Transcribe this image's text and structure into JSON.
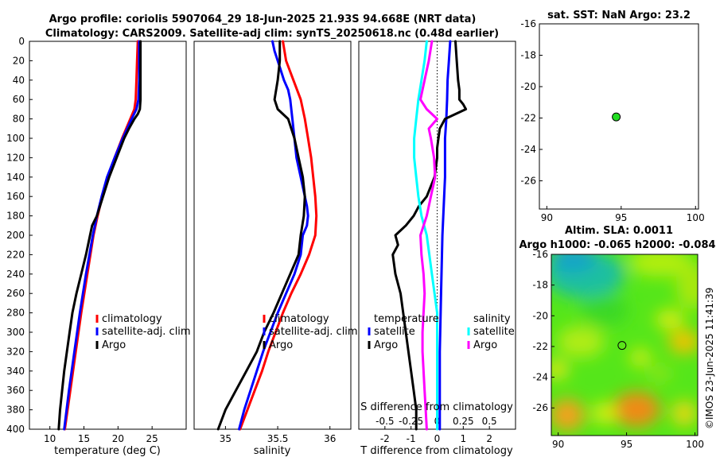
{
  "header": {
    "title_line1": "Argo profile: coriolis 5907064_29 18-Jun-2025 21.93S 94.668E (NRT data)",
    "title_line2": "Climatology: CARS2009. Satellite-adj clim: synTS_20250618.nc (0.48d earlier)"
  },
  "colors": {
    "climatology": "#ff0000",
    "satellite": "#0000ff",
    "argo": "#000000",
    "temp_diff_satellite": "#00ffff",
    "sal_diff_argo": "#ff00ff",
    "map_point": "#22dd22"
  },
  "legends": {
    "profile": [
      "climatology",
      "satellite-adj. clim",
      "Argo"
    ],
    "diff_temperature_title": "temperature",
    "diff_salinity_title": "salinity",
    "diff_entries": [
      "satellite",
      "Argo"
    ]
  },
  "sst_panel": {
    "title": "sat. SST: NaN Argo: 23.2"
  },
  "sla_panel": {
    "title_line1": "Altim. SLA: 0.0011",
    "title_line2": "Argo h1000: -0.065 h2000: -0.084"
  },
  "watermark": "©IMOS 23-Jun-2025 11:41:39",
  "chart_data": [
    {
      "type": "line",
      "name": "temperature-profile",
      "xlabel": "temperature (deg C)",
      "ylabel": "",
      "xlim": [
        7,
        30
      ],
      "ylim": [
        400,
        0
      ],
      "xticks": [
        "10",
        "15",
        "20",
        "25"
      ],
      "xtick_values": [
        10,
        15,
        20,
        25
      ],
      "yticks": [
        "0",
        "20",
        "40",
        "60",
        "80",
        "100",
        "120",
        "140",
        "160",
        "180",
        "200",
        "220",
        "240",
        "260",
        "280",
        "300",
        "320",
        "340",
        "360",
        "380",
        "400"
      ],
      "ytick_values": [
        0,
        20,
        40,
        60,
        80,
        100,
        120,
        140,
        160,
        180,
        200,
        220,
        240,
        260,
        280,
        300,
        320,
        340,
        360,
        380,
        400
      ],
      "series": [
        {
          "name": "climatology",
          "color": "#ff0000",
          "depth": [
            0,
            20,
            40,
            60,
            70,
            80,
            100,
            120,
            140,
            160,
            180,
            200,
            240,
            280,
            320,
            360,
            400
          ],
          "values": [
            22.9,
            22.8,
            22.7,
            22.6,
            22.4,
            21.8,
            20.6,
            19.5,
            18.5,
            17.7,
            17.0,
            16.4,
            15.5,
            14.6,
            13.8,
            13.0,
            12.2
          ]
        },
        {
          "name": "satellite-adj. clim",
          "color": "#0000ff",
          "depth": [
            0,
            20,
            40,
            60,
            70,
            80,
            100,
            120,
            140,
            160,
            180,
            200,
            240,
            280,
            320,
            360,
            400
          ],
          "values": [
            23.1,
            23.1,
            23.1,
            23.0,
            22.7,
            22.0,
            20.7,
            19.5,
            18.4,
            17.6,
            16.9,
            16.3,
            15.3,
            14.4,
            13.6,
            12.8,
            12.1
          ]
        },
        {
          "name": "Argo",
          "color": "#000000",
          "depth": [
            0,
            20,
            40,
            60,
            70,
            75,
            80,
            90,
            100,
            120,
            140,
            160,
            180,
            190,
            200,
            220,
            240,
            260,
            280,
            300,
            320,
            340,
            360,
            380,
            400
          ],
          "values": [
            23.3,
            23.3,
            23.3,
            23.3,
            23.2,
            22.9,
            22.4,
            21.6,
            20.9,
            19.8,
            18.7,
            17.8,
            16.9,
            16.2,
            15.9,
            15.3,
            14.6,
            13.9,
            13.3,
            12.9,
            12.5,
            12.1,
            11.8,
            11.5,
            11.3
          ]
        }
      ]
    },
    {
      "type": "line",
      "name": "salinity-profile",
      "xlabel": "salinity",
      "ylabel": "",
      "xlim": [
        34.7,
        36.2
      ],
      "ylim": [
        400,
        0
      ],
      "xticks": [
        "35",
        "35.5",
        "36"
      ],
      "xtick_values": [
        35,
        35.5,
        36
      ],
      "series": [
        {
          "name": "climatology",
          "color": "#ff0000",
          "depth": [
            0,
            20,
            40,
            60,
            80,
            100,
            120,
            140,
            160,
            180,
            200,
            220,
            240,
            260,
            280,
            300,
            320,
            340,
            360,
            380,
            400
          ],
          "values": [
            35.55,
            35.58,
            35.65,
            35.72,
            35.76,
            35.79,
            35.82,
            35.84,
            35.86,
            35.87,
            35.86,
            35.8,
            35.72,
            35.63,
            35.55,
            35.48,
            35.41,
            35.35,
            35.28,
            35.21,
            35.14
          ]
        },
        {
          "name": "satellite-adj. clim",
          "color": "#0000ff",
          "depth": [
            0,
            10,
            20,
            30,
            40,
            50,
            60,
            80,
            100,
            120,
            140,
            160,
            170,
            180,
            190,
            200,
            220,
            240,
            260,
            280,
            300,
            320,
            340,
            360,
            380,
            400
          ],
          "values": [
            35.45,
            35.47,
            35.5,
            35.53,
            35.56,
            35.6,
            35.62,
            35.64,
            35.66,
            35.68,
            35.72,
            35.76,
            35.78,
            35.79,
            35.78,
            35.74,
            35.72,
            35.66,
            35.58,
            35.5,
            35.43,
            35.36,
            35.3,
            35.24,
            35.18,
            35.13
          ]
        },
        {
          "name": "Argo",
          "color": "#000000",
          "depth": [
            0,
            20,
            40,
            60,
            70,
            80,
            100,
            120,
            140,
            160,
            180,
            200,
            220,
            240,
            260,
            280,
            300,
            320,
            340,
            360,
            380,
            400
          ],
          "values": [
            35.52,
            35.52,
            35.5,
            35.47,
            35.5,
            35.6,
            35.66,
            35.7,
            35.74,
            35.76,
            35.75,
            35.72,
            35.7,
            35.62,
            35.54,
            35.46,
            35.37,
            35.3,
            35.2,
            35.1,
            35.0,
            34.93
          ]
        }
      ]
    },
    {
      "type": "line",
      "name": "difference-from-climatology",
      "xlabel": "T difference from climatology",
      "xlabel_top": "S difference from climatology",
      "xlim": [
        -3,
        3
      ],
      "ylim": [
        400,
        0
      ],
      "xticks": [
        "-2",
        "-1",
        "0",
        "1",
        "2"
      ],
      "xtick_values": [
        -2,
        -1,
        0,
        1,
        2
      ],
      "xticks_top": [
        "-0.5",
        "-0.25",
        "0",
        "0.25",
        "0.5"
      ],
      "xtick_top_values": [
        -0.5,
        -0.25,
        0,
        0.25,
        0.5
      ],
      "series": [
        {
          "name": "temperature satellite",
          "color": "#0000ff",
          "depth": [
            0,
            20,
            40,
            60,
            80,
            100,
            140,
            200,
            260,
            320,
            360,
            400
          ],
          "values": [
            0.5,
            0.45,
            0.4,
            0.38,
            0.35,
            0.3,
            0.3,
            0.2,
            0.15,
            0.1,
            0.1,
            0.1
          ]
        },
        {
          "name": "temperature Argo",
          "color": "#000000",
          "depth": [
            0,
            20,
            40,
            50,
            60,
            65,
            70,
            75,
            80,
            90,
            100,
            110,
            120,
            140,
            160,
            170,
            180,
            190,
            200,
            210,
            220,
            240,
            260,
            280,
            300,
            320,
            340,
            360,
            380,
            400
          ],
          "values": [
            0.7,
            0.75,
            0.8,
            0.85,
            0.85,
            1.0,
            1.1,
            0.7,
            0.3,
            0.1,
            0.05,
            0.0,
            0.0,
            -0.1,
            -0.4,
            -0.7,
            -0.9,
            -1.2,
            -1.6,
            -1.5,
            -1.7,
            -1.6,
            -1.4,
            -1.3,
            -1.2,
            -1.1,
            -1.0,
            -0.9,
            -0.8,
            -0.8
          ]
        },
        {
          "name": "salinity satellite",
          "color": "#00ffff",
          "depth": [
            0,
            20,
            40,
            60,
            80,
            100,
            120,
            140,
            160,
            180,
            200,
            240,
            280,
            320,
            360,
            400
          ],
          "values": [
            -0.1,
            -0.12,
            -0.15,
            -0.18,
            -0.2,
            -0.22,
            -0.22,
            -0.2,
            -0.18,
            -0.15,
            -0.1,
            -0.05,
            0.0,
            0.0,
            0.0,
            0.0
          ]
        },
        {
          "name": "salinity Argo",
          "color": "#ff00ff",
          "depth": [
            0,
            20,
            40,
            60,
            70,
            80,
            90,
            100,
            120,
            140,
            160,
            180,
            200,
            220,
            240,
            260,
            280,
            300,
            320,
            340,
            360,
            380,
            400
          ],
          "values": [
            -0.05,
            -0.08,
            -0.12,
            -0.16,
            -0.1,
            0.0,
            -0.08,
            -0.06,
            -0.03,
            -0.02,
            -0.06,
            -0.1,
            -0.16,
            -0.15,
            -0.13,
            -0.12,
            -0.13,
            -0.14,
            -0.14,
            -0.13,
            -0.12,
            -0.11,
            -0.1
          ]
        }
      ]
    },
    {
      "type": "scatter",
      "name": "sst-location-map",
      "title": "sat. SST: NaN Argo: 23.2",
      "xlim": [
        89.5,
        100.2
      ],
      "ylim": [
        -27.8,
        -16
      ],
      "xticks": [
        "90",
        "95",
        "100"
      ],
      "xtick_values": [
        90,
        95,
        100
      ],
      "yticks": [
        "-16",
        "-18",
        "-20",
        "-22",
        "-24",
        "-26"
      ],
      "ytick_values": [
        -16,
        -18,
        -20,
        -22,
        -24,
        -26
      ],
      "points": [
        {
          "lon": 94.668,
          "lat": -21.93
        }
      ]
    },
    {
      "type": "heatmap",
      "name": "sla-map",
      "title": "Altim. SLA: 0.0011",
      "xlim": [
        89.5,
        100.2
      ],
      "ylim": [
        -27.8,
        -16
      ],
      "xticks": [
        "90",
        "95",
        "100"
      ],
      "xtick_values": [
        90,
        95,
        100
      ],
      "yticks": [
        "-16",
        "-18",
        "-20",
        "-22",
        "-24",
        "-26"
      ],
      "ytick_values": [
        -16,
        -18,
        -20,
        -22,
        -24,
        -26
      ],
      "points": [
        {
          "lon": 94.668,
          "lat": -21.93
        }
      ]
    }
  ]
}
